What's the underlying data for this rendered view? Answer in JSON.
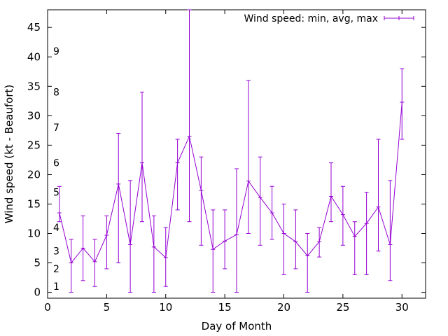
{
  "chart_data": {
    "type": "line",
    "title": "",
    "xlabel": "Day of Month",
    "ylabel": "Wind speed (kt - Beaufort)",
    "xlim": [
      0,
      32
    ],
    "ylim": [
      -1,
      48
    ],
    "x_ticks": [
      0,
      5,
      10,
      15,
      20,
      25,
      30
    ],
    "y_ticks": [
      0,
      5,
      10,
      15,
      20,
      25,
      30,
      35,
      40,
      45
    ],
    "grid": false,
    "legend_position": "top-right",
    "series_color": "#9400d3",
    "beaufort_labels": [
      {
        "label": "1",
        "value": 1
      },
      {
        "label": "2",
        "value": 4
      },
      {
        "label": "3",
        "value": 7
      },
      {
        "label": "4",
        "value": 11
      },
      {
        "label": "5",
        "value": 17
      },
      {
        "label": "6",
        "value": 22
      },
      {
        "label": "7",
        "value": 28
      },
      {
        "label": "8",
        "value": 34
      },
      {
        "label": "9",
        "value": 41
      }
    ],
    "series": [
      {
        "name": "Wind speed: min, avg, max",
        "x": [
          1,
          2,
          3,
          4,
          5,
          6,
          7,
          8,
          9,
          10,
          11,
          12,
          13,
          14,
          15,
          16,
          17,
          18,
          19,
          20,
          21,
          22,
          23,
          24,
          25,
          26,
          27,
          28,
          29,
          30
        ],
        "avg": [
          13.5,
          5,
          7.5,
          5.2,
          9.7,
          18.4,
          8.1,
          22,
          7.7,
          5.9,
          22,
          26.5,
          17.3,
          7.3,
          8.7,
          9.8,
          18.9,
          16.1,
          13.5,
          10,
          8.6,
          6.2,
          8.6,
          16.3,
          13.2,
          9.5,
          11.7,
          14.5,
          8.1,
          32.3
        ],
        "min": [
          12,
          0,
          2,
          1,
          4,
          5,
          0,
          12,
          0,
          1,
          14,
          12,
          8,
          0,
          4,
          0,
          10,
          8,
          9,
          3,
          4,
          0,
          6,
          12,
          8,
          3,
          3,
          7,
          2,
          26
        ],
        "max": [
          18,
          9,
          13,
          9,
          13,
          27,
          19,
          34,
          13,
          11,
          26,
          48,
          23,
          14,
          14,
          21,
          36,
          23,
          18,
          15,
          14,
          10,
          11,
          22,
          18,
          12,
          17,
          26,
          19,
          38
        ]
      }
    ]
  }
}
